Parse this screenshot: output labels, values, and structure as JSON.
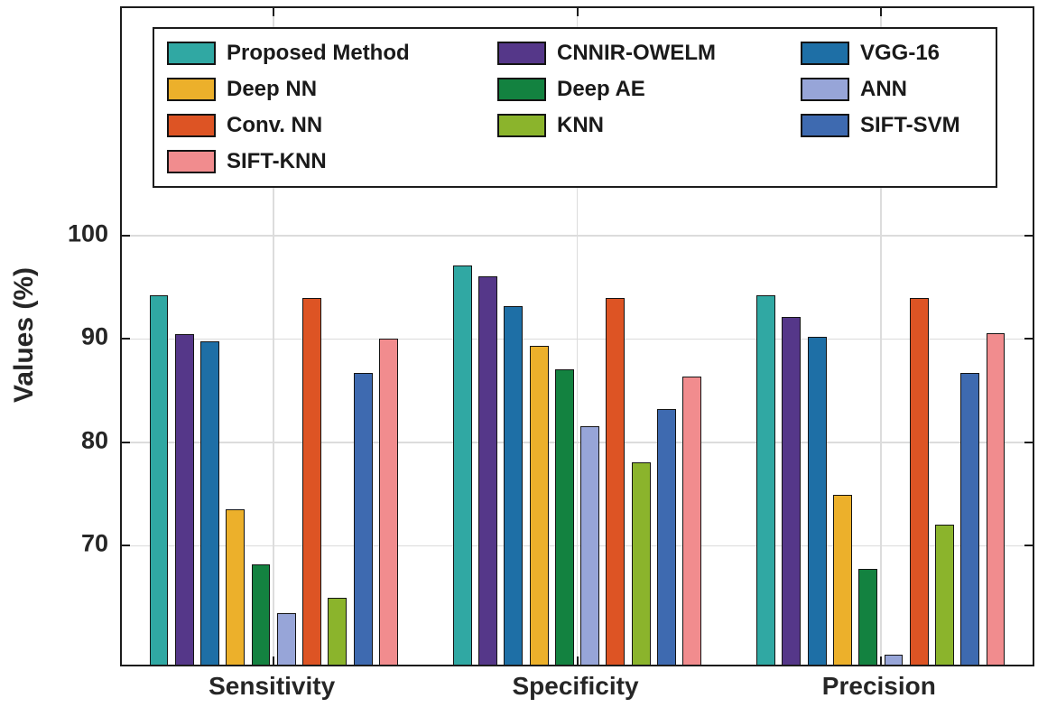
{
  "chart_data": {
    "type": "bar",
    "title": "",
    "xlabel": "",
    "ylabel": "Values (%)",
    "categories": [
      "Sensitivity",
      "Specificity",
      "Precision"
    ],
    "yticks": [
      70,
      80,
      90,
      100
    ],
    "ylim": [
      58.5,
      122
    ],
    "grid": true,
    "legend_position": "top-inside",
    "legend_columns": 3,
    "bar_edge_color": "#141414",
    "grid_color": "#dcdcdc",
    "axis_color": "#1c1c1c",
    "series": [
      {
        "name": "Proposed Method",
        "color": "#30A8A3",
        "values": [
          94.2,
          97.1,
          94.2
        ]
      },
      {
        "name": "CNNIR-OWELM",
        "color": "#553789",
        "values": [
          90.5,
          96.1,
          92.1
        ]
      },
      {
        "name": "VGG-16",
        "color": "#1E6FA6",
        "values": [
          89.8,
          93.2,
          90.2
        ]
      },
      {
        "name": "Deep NN",
        "color": "#ECB02B",
        "values": [
          73.5,
          89.3,
          74.9
        ]
      },
      {
        "name": "Deep AE",
        "color": "#138240",
        "values": [
          68.2,
          87.1,
          67.8
        ]
      },
      {
        "name": "ANN",
        "color": "#97A5D8",
        "values": [
          63.5,
          81.6,
          59.5
        ]
      },
      {
        "name": "Conv. NN",
        "color": "#DD5424",
        "values": [
          94.0,
          94.0,
          94.0
        ]
      },
      {
        "name": "KNN",
        "color": "#8BB42C",
        "values": [
          65.0,
          78.1,
          72.0
        ]
      },
      {
        "name": "SIFT-SVM",
        "color": "#3E6AB0",
        "values": [
          86.7,
          83.2,
          86.7
        ]
      },
      {
        "name": "SIFT-KNN",
        "color": "#F18C8E",
        "values": [
          90.0,
          86.4,
          90.6
        ]
      }
    ]
  }
}
